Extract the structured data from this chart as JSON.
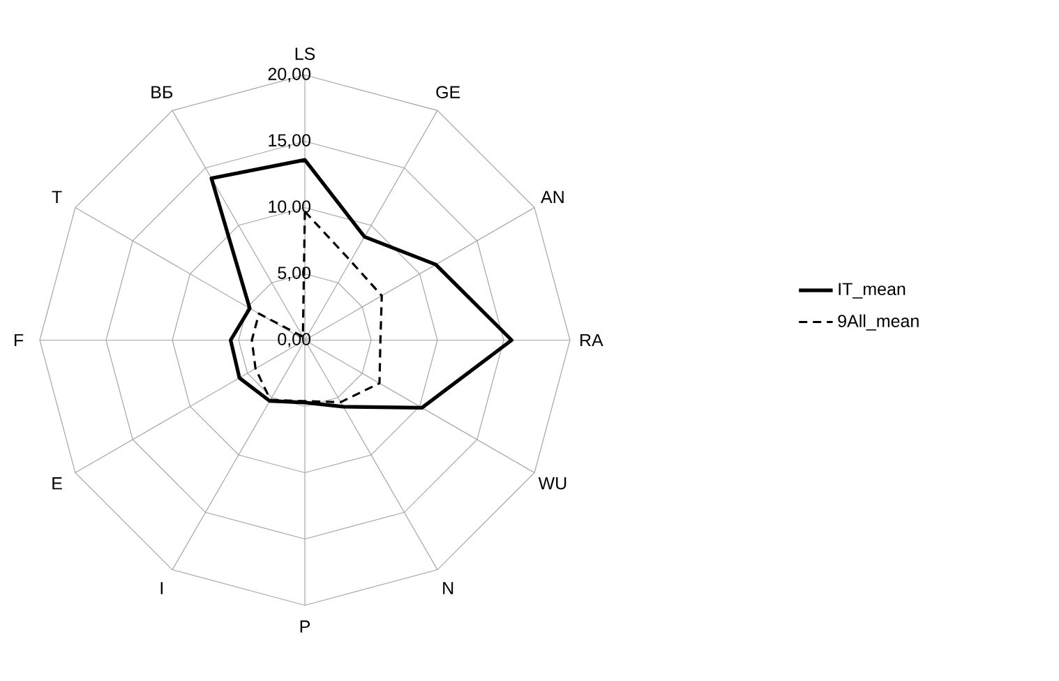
{
  "chart_data": {
    "type": "radar",
    "categories": [
      "LS",
      "GE",
      "AN",
      "RA",
      "WU",
      "N",
      "P",
      "I",
      "E",
      "F",
      "T",
      "BБ"
    ],
    "series": [
      {
        "name": "IT_mean",
        "color": "#000000",
        "line_style": "solid",
        "values": [
          13.6,
          9.0,
          11.4,
          15.6,
          10.2,
          5.8,
          4.7,
          5.3,
          5.7,
          5.6,
          4.8,
          14.1
        ]
      },
      {
        "name": "9All_mean",
        "color": "#000000",
        "line_style": "dashed",
        "values": [
          9.7,
          6.9,
          6.7,
          5.7,
          6.5,
          5.4,
          4.6,
          5.2,
          4.3,
          4.0,
          4.0,
          0.3
        ]
      }
    ],
    "ylim": [
      0,
      20
    ],
    "yticks": [
      {
        "value": 0,
        "label": "0,00"
      },
      {
        "value": 5,
        "label": "5,00"
      },
      {
        "value": 10,
        "label": "10,00"
      },
      {
        "value": 15,
        "label": "15,00"
      },
      {
        "value": 20,
        "label": "20,00"
      }
    ],
    "grid": true,
    "legend": "right"
  }
}
